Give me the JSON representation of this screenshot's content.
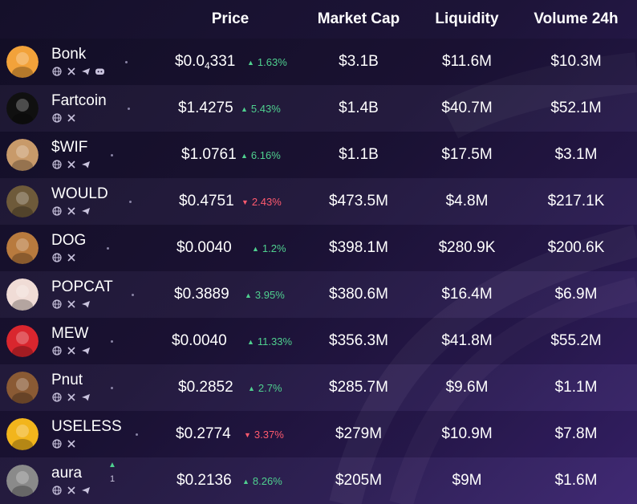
{
  "headers": {
    "price": "Price",
    "market_cap": "Market Cap",
    "liquidity": "Liquidity",
    "volume": "Volume 24h"
  },
  "rows": [
    {
      "name": "Bonk",
      "price_main": "$0.0",
      "price_sub": "4",
      "price_tail": "331",
      "change": "1.63%",
      "direction": "up",
      "market_cap": "$3.1B",
      "liquidity": "$11.6M",
      "volume": "$10.3M",
      "socials": [
        "globe-icon",
        "x-icon",
        "telegram-icon",
        "discord-icon"
      ],
      "avatar_color": "#f2a23a"
    },
    {
      "name": "Fartcoin",
      "price_main": "$1.4275",
      "price_sub": "",
      "price_tail": "",
      "change": "5.43%",
      "direction": "up",
      "market_cap": "$1.4B",
      "liquidity": "$40.7M",
      "volume": "$52.1M",
      "socials": [
        "globe-icon",
        "x-icon"
      ],
      "avatar_color": "#101010"
    },
    {
      "name": "$WIF",
      "price_main": "$1.0761",
      "price_sub": "",
      "price_tail": "",
      "change": "6.16%",
      "direction": "up",
      "market_cap": "$1.1B",
      "liquidity": "$17.5M",
      "volume": "$3.1M",
      "socials": [
        "globe-icon",
        "x-icon",
        "telegram-icon"
      ],
      "avatar_color": "#c89a6a"
    },
    {
      "name": "WOULD",
      "price_main": "$0.4751",
      "price_sub": "",
      "price_tail": "",
      "change": "2.43%",
      "direction": "down",
      "market_cap": "$473.5M",
      "liquidity": "$4.8M",
      "volume": "$217.1K",
      "socials": [
        "globe-icon",
        "x-icon",
        "telegram-icon"
      ],
      "avatar_color": "#6e5a3a"
    },
    {
      "name": "DOG",
      "price_main": "$0.0040",
      "price_sub": "",
      "price_tail": "",
      "change": "1.2%",
      "direction": "up",
      "market_cap": "$398.1M",
      "liquidity": "$280.9K",
      "volume": "$200.6K",
      "socials": [
        "globe-icon",
        "x-icon"
      ],
      "avatar_color": "#b87a3e"
    },
    {
      "name": "POPCAT",
      "price_main": "$0.3889",
      "price_sub": "",
      "price_tail": "",
      "change": "3.95%",
      "direction": "up",
      "market_cap": "$380.6M",
      "liquidity": "$16.4M",
      "volume": "$6.9M",
      "socials": [
        "globe-icon",
        "x-icon",
        "telegram-icon"
      ],
      "avatar_color": "#f0dcd6"
    },
    {
      "name": "MEW",
      "price_main": "$0.0040",
      "price_sub": "",
      "price_tail": "",
      "change": "11.33%",
      "direction": "up",
      "market_cap": "$356.3M",
      "liquidity": "$41.8M",
      "volume": "$55.2M",
      "socials": [
        "globe-icon",
        "x-icon",
        "telegram-icon"
      ],
      "avatar_color": "#d9262e"
    },
    {
      "name": "Pnut",
      "price_main": "$0.2852",
      "price_sub": "",
      "price_tail": "",
      "change": "2.7%",
      "direction": "up",
      "market_cap": "$285.7M",
      "liquidity": "$9.6M",
      "volume": "$1.1M",
      "socials": [
        "globe-icon",
        "x-icon",
        "telegram-icon"
      ],
      "avatar_color": "#8a5a34"
    },
    {
      "name": "USELESS",
      "price_main": "$0.2774",
      "price_sub": "",
      "price_tail": "",
      "change": "3.37%",
      "direction": "down",
      "market_cap": "$279M",
      "liquidity": "$10.9M",
      "volume": "$7.8M",
      "socials": [
        "globe-icon",
        "x-icon"
      ],
      "avatar_color": "#f2b51c"
    },
    {
      "name": "aura",
      "price_main": "$0.2136",
      "price_sub": "",
      "price_tail": "",
      "change": "8.26%",
      "direction": "up",
      "market_cap": "$205M",
      "liquidity": "$9M",
      "volume": "$1.6M",
      "socials": [
        "globe-icon",
        "x-icon",
        "telegram-icon"
      ],
      "avatar_color": "#8a8a8a",
      "rank_change": "1"
    }
  ],
  "colors": {
    "up": "#4fd08f",
    "down": "#ff5a6e",
    "accent": "#3a2370"
  }
}
